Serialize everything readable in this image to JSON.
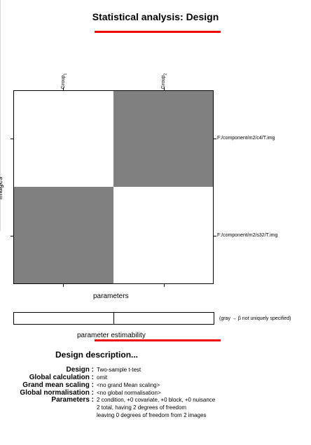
{
  "header": {
    "title": "Statistical analysis: Design"
  },
  "matrix": {
    "columns": [
      {
        "label": "Group",
        "sub": "1"
      },
      {
        "label": "Group",
        "sub": "2"
      }
    ],
    "rows": [
      "F:/component/m2/c4/T.img",
      "F:/component/m2/s32/T.img"
    ],
    "cells": [
      [
        "white",
        "gray"
      ],
      [
        "gray",
        "white"
      ]
    ],
    "colors": {
      "white": "#ffffff",
      "gray": "#808080"
    },
    "xlabel": "parameters",
    "ylabel": "images"
  },
  "estimability": {
    "label": "parameter estimability",
    "note": "(gray → β not uniquely specified)"
  },
  "description": {
    "title": "Design description...",
    "items": [
      {
        "label": "Design :",
        "value": "Two-sample t-test"
      },
      {
        "label": "Global calculation :",
        "value": "omit"
      },
      {
        "label": "Grand mean scaling :",
        "value": "<no grand Mean scaling>"
      },
      {
        "label": "Global normalisation :",
        "value": "<no global normalisation>"
      },
      {
        "label": "Parameters :",
        "value": "2 condition, +0 covariate, +0 block, +0 nuisance"
      }
    ],
    "extra_lines": [
      "2 total, having 2 degrees of freedom",
      "leaving 0 degrees of freedom from 2 images"
    ]
  }
}
